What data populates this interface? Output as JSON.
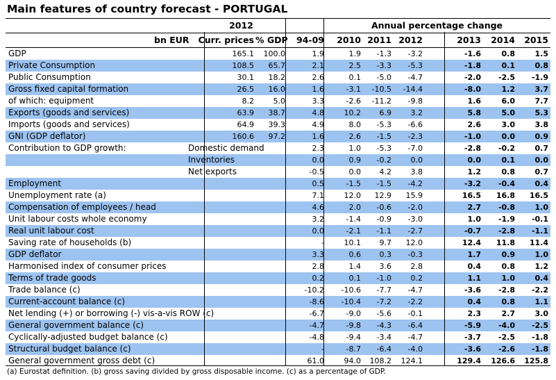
{
  "title": "Main features of country forecast - PORTUGAL",
  "header": {
    "year_label": "2012",
    "annual_label": "Annual percentage change",
    "unit": "bn EUR",
    "columns": [
      "Curr. prices",
      "% GDP",
      "94-09",
      "2010",
      "2011",
      "2012",
      "2013",
      "2014",
      "2015"
    ]
  },
  "rows": [
    {
      "label": "GDP",
      "sub": "",
      "values": [
        "165.1",
        "100.0",
        "1.9",
        "1.9",
        "-1.3",
        "-3.2",
        "-1.6",
        "0.8",
        "1.5"
      ]
    },
    {
      "label": "Private Consumption",
      "sub": "",
      "values": [
        "108.5",
        "65.7",
        "2.1",
        "2.5",
        "-3.3",
        "-5.3",
        "-1.8",
        "0.1",
        "0.8"
      ]
    },
    {
      "label": "Public Consumption",
      "sub": "",
      "values": [
        "30.1",
        "18.2",
        "2.6",
        "0.1",
        "-5.0",
        "-4.7",
        "-2.0",
        "-2.5",
        "-1.9"
      ]
    },
    {
      "label": "Gross fixed capital formation",
      "sub": "",
      "values": [
        "26.5",
        "16.0",
        "1.6",
        "-3.1",
        "-10.5",
        "-14.4",
        "-8.0",
        "1.2",
        "3.7"
      ]
    },
    {
      "label": "of which: equipment",
      "sub": "",
      "values": [
        "8.2",
        "5.0",
        "3.3",
        "-2.6",
        "-11.2",
        "-9.8",
        "1.6",
        "6.0",
        "7.7"
      ]
    },
    {
      "label": "Exports (goods and services)",
      "sub": "",
      "values": [
        "63.9",
        "38.7",
        "4.8",
        "10.2",
        "6.9",
        "3.2",
        "5.8",
        "5.0",
        "5.3"
      ]
    },
    {
      "label": "Imports (goods and services)",
      "sub": "",
      "values": [
        "64.9",
        "39.3",
        "4.9",
        "8.0",
        "-5.3",
        "-6.6",
        "2.6",
        "3.0",
        "3.8"
      ]
    },
    {
      "label": "GNI (GDP deflator)",
      "sub": "",
      "values": [
        "160.6",
        "97.2",
        "1.6",
        "2.6",
        "-1.5",
        "-2.3",
        "-1.0",
        "0.0",
        "0.9"
      ]
    },
    {
      "label": "Contribution to GDP growth:",
      "sub": "Domestic demand",
      "values": [
        "",
        "",
        "2.3",
        "1.0",
        "-5.3",
        "-7.0",
        "-2.8",
        "-0.2",
        "0.7"
      ]
    },
    {
      "label": "",
      "sub": "Inventories",
      "values": [
        "",
        "",
        "0.0",
        "0.9",
        "-0.2",
        "0.0",
        "0.0",
        "0.1",
        "0.0"
      ]
    },
    {
      "label": "",
      "sub": "Net exports",
      "values": [
        "",
        "",
        "-0.5",
        "0.0",
        "4.2",
        "3.8",
        "1.2",
        "0.8",
        "0.7"
      ]
    },
    {
      "label": "Employment",
      "sub": "",
      "values": [
        "",
        "",
        "0.5",
        "-1.5",
        "-1.5",
        "-4.2",
        "-3.2",
        "-0.4",
        "0.4"
      ]
    },
    {
      "label": "Unemployment rate (a)",
      "sub": "",
      "values": [
        "",
        "",
        "7.1",
        "12.0",
        "12.9",
        "15.9",
        "16.5",
        "16.8",
        "16.5"
      ]
    },
    {
      "label": "Compensation of employees / head",
      "sub": "",
      "values": [
        "",
        "",
        "4.6",
        "2.0",
        "-0.6",
        "-2.0",
        "2.7",
        "-0.8",
        "1.0"
      ]
    },
    {
      "label": "Unit labour costs whole economy",
      "sub": "",
      "values": [
        "",
        "",
        "3.2",
        "-1.4",
        "-0.9",
        "-3.0",
        "1.0",
        "-1.9",
        "-0.1"
      ]
    },
    {
      "label": "Real unit labour cost",
      "sub": "",
      "values": [
        "",
        "",
        "0.0",
        "-2.1",
        "-1.1",
        "-2.7",
        "-0.7",
        "-2.8",
        "-1.1"
      ]
    },
    {
      "label": "Saving rate of households (b)",
      "sub": "",
      "values": [
        "",
        "",
        "-",
        "10.1",
        "9.7",
        "12.0",
        "12.4",
        "11.8",
        "11.4"
      ]
    },
    {
      "label": "GDP deflator",
      "sub": "",
      "values": [
        "",
        "",
        "3.3",
        "0.6",
        "0.3",
        "-0.3",
        "1.7",
        "0.9",
        "1.0"
      ]
    },
    {
      "label": "Harmonised index of consumer prices",
      "sub": "",
      "values": [
        "",
        "",
        "2.8",
        "1.4",
        "3.6",
        "2.8",
        "0.4",
        "0.8",
        "1.2"
      ]
    },
    {
      "label": "Terms of trade goods",
      "sub": "",
      "values": [
        "",
        "",
        "0.2",
        "0.1",
        "-1.0",
        "0.2",
        "1.1",
        "1.0",
        "0.4"
      ]
    },
    {
      "label": "Trade balance (c)",
      "sub": "",
      "values": [
        "",
        "",
        "-10.2",
        "-10.6",
        "-7.7",
        "-4.7",
        "-3.6",
        "-2.8",
        "-2.2"
      ]
    },
    {
      "label": "Current-account balance (c)",
      "sub": "",
      "values": [
        "",
        "",
        "-8.6",
        "-10.4",
        "-7.2",
        "-2.2",
        "0.4",
        "0.8",
        "1.1"
      ]
    },
    {
      "label": "Net lending (+) or borrowing (-) vis-a-vis ROW (c)",
      "sub": "",
      "values": [
        "",
        "",
        "-6.7",
        "-9.0",
        "-5.6",
        "-0.1",
        "2.3",
        "2.7",
        "3.0"
      ]
    },
    {
      "label": "General government balance (c)",
      "sub": "",
      "values": [
        "",
        "",
        "-4.7",
        "-9.8",
        "-4.3",
        "-6.4",
        "-5.9",
        "-4.0",
        "-2.5"
      ]
    },
    {
      "label": "Cyclically-adjusted budget balance (c)",
      "sub": "",
      "values": [
        "",
        "",
        "-4.8",
        "-9.4",
        "-3.4",
        "-4.7",
        "-3.7",
        "-2.5",
        "-1.8"
      ]
    },
    {
      "label": "Structural budget balance (c)",
      "sub": "",
      "values": [
        "",
        "",
        "-",
        "-8.7",
        "-6.4",
        "-4.0",
        "-3.6",
        "-2.6",
        "-1.8"
      ]
    },
    {
      "label": "General government gross debt (c)",
      "sub": "",
      "values": [
        "",
        "",
        "61.0",
        "94.0",
        "108.2",
        "124.1",
        "129.4",
        "126.6",
        "125.8"
      ]
    }
  ],
  "footnote": "(a) Eurostat definition.  (b) gross saving divided by gross disposable income.  (c) as a percentage of GDP.",
  "colors": {
    "band": "#9dc3f0"
  }
}
